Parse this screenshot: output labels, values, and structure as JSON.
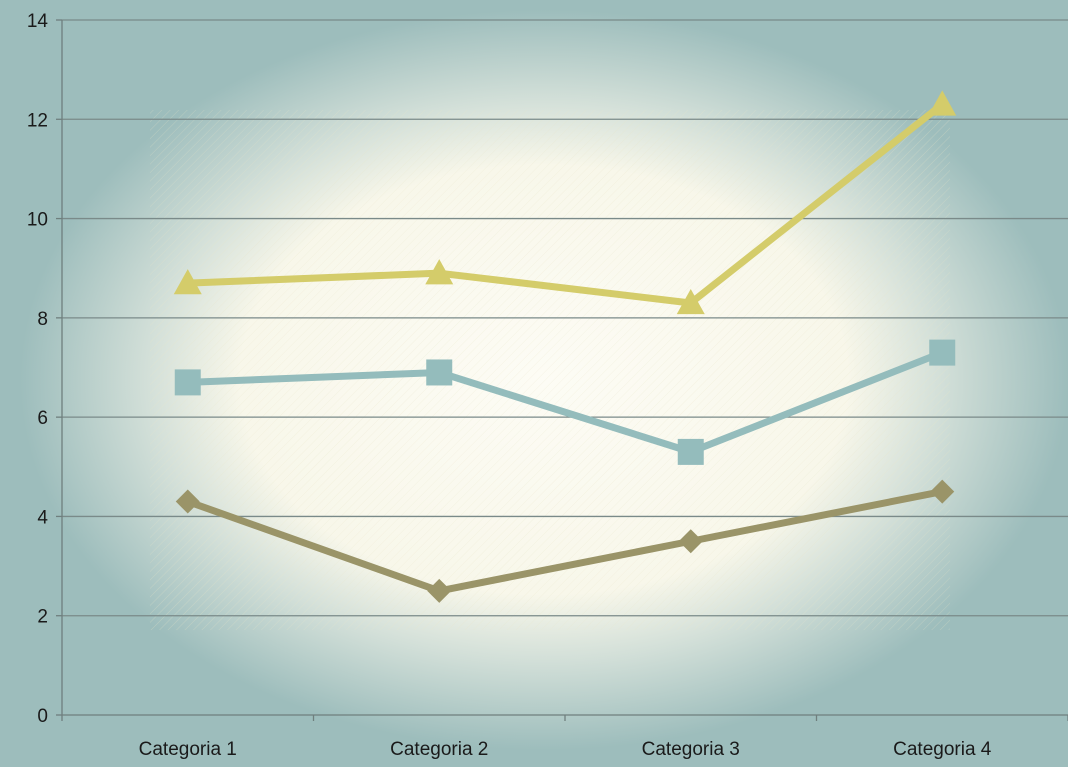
{
  "chart_data": {
    "type": "line",
    "title": "",
    "xlabel": "",
    "ylabel": "",
    "categories": [
      "Categoria 1",
      "Categoria 2",
      "Categoria 3",
      "Categoria 4"
    ],
    "ylim": [
      0,
      14
    ],
    "yticks": [
      "0",
      "2",
      "4",
      "6",
      "8",
      "10",
      "12",
      "14"
    ],
    "grid": true,
    "legend": "none",
    "series": [
      {
        "color": "#9a9468",
        "marker": "diamond",
        "values": [
          4.3,
          2.5,
          3.5,
          4.5
        ]
      },
      {
        "color": "#94bcbc",
        "marker": "square",
        "values": [
          6.7,
          6.9,
          5.3,
          7.3
        ]
      },
      {
        "color": "#d4cc6a",
        "marker": "triangle",
        "values": [
          8.7,
          8.9,
          8.3,
          12.3
        ]
      }
    ],
    "colors": {
      "background": "#9dbdbc",
      "glow_center": "#fdfcf5",
      "gridline": "#7a8a89",
      "axis": "#6f7f7e"
    }
  }
}
